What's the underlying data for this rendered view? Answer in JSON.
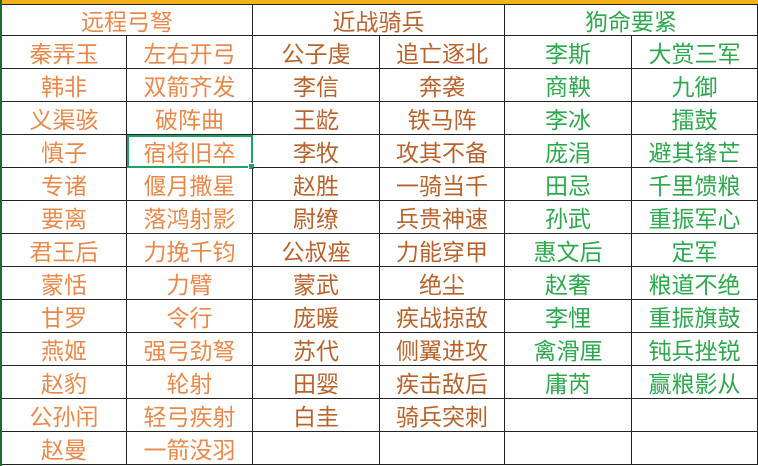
{
  "colors": {
    "range": "#e8884a",
    "melee": "#b8632c",
    "support": "#2ea84e",
    "header_strip": "#f2b21b",
    "selection": "#21a366"
  },
  "headers": [
    "远程弓弩",
    "近战骑兵",
    "狗命要紧"
  ],
  "selected_cell": {
    "row": 3,
    "col": 1
  },
  "rows": [
    [
      "秦弄玉",
      "左右开弓",
      "公子虔",
      "追亡逐北",
      "李斯",
      "大赏三军"
    ],
    [
      "韩非",
      "双箭齐发",
      "李信",
      "奔袭",
      "商鞅",
      "九御"
    ],
    [
      "义渠骇",
      "破阵曲",
      "王龁",
      "铁马阵",
      "李冰",
      "擂鼓"
    ],
    [
      "慎子",
      "宿将旧卒",
      "李牧",
      "攻其不备",
      "庞涓",
      "避其锋芒"
    ],
    [
      "专诸",
      "偃月撒星",
      "赵胜",
      "一骑当千",
      "田忌",
      "千里馈粮"
    ],
    [
      "要离",
      "落鸿射影",
      "尉缭",
      "兵贵神速",
      "孙武",
      "重振军心"
    ],
    [
      "君王后",
      "力挽千钧",
      "公叔痤",
      "力能穿甲",
      "惠文后",
      "定军"
    ],
    [
      "蒙恬",
      "力臂",
      "蒙武",
      "绝尘",
      "赵奢",
      "粮道不绝"
    ],
    [
      "甘罗",
      "令行",
      "庞暖",
      "疾战掠敌",
      "李悝",
      "重振旗鼓"
    ],
    [
      "燕姬",
      "强弓劲弩",
      "苏代",
      "侧翼进攻",
      "禽滑厘",
      "钝兵挫锐"
    ],
    [
      "赵豹",
      "轮射",
      "田婴",
      "疾击敌后",
      "庸芮",
      "赢粮影从"
    ],
    [
      "公孙闬",
      "轻弓疾射",
      "白圭",
      "骑兵突刺",
      "",
      ""
    ],
    [
      "赵曼",
      "一箭没羽",
      "",
      "",
      "",
      ""
    ]
  ]
}
